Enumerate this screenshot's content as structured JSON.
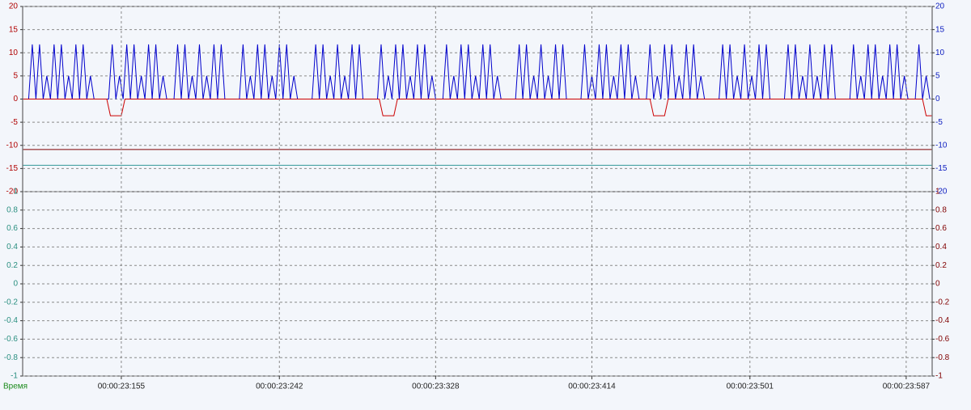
{
  "chart_data": [
    {
      "type": "line",
      "xlim": [
        23100.7,
        23601.3
      ],
      "ylim": [
        -20,
        20
      ],
      "yticks": [
        20,
        15,
        10,
        5,
        0,
        -5,
        -10,
        -15,
        -20
      ],
      "grid": true,
      "series": [
        {
          "color": "#0000cc",
          "x": [
            23101,
            23104,
            23106,
            23108,
            23110,
            23112,
            23114,
            23116,
            23118,
            23120,
            23122,
            23124,
            23126,
            23128,
            23130,
            23132,
            23134,
            23136,
            23138,
            23140,
            23148,
            23150,
            23152,
            23154,
            23156,
            23158,
            23160,
            23162,
            23164,
            23166,
            23168,
            23170,
            23172,
            23174,
            23176,
            23178,
            23180,
            23184,
            23186,
            23188,
            23190,
            23192,
            23194,
            23196,
            23198,
            23200,
            23202,
            23204,
            23206,
            23208,
            23210,
            23212,
            23220,
            23222,
            23224,
            23226,
            23228,
            23230,
            23232,
            23234,
            23236,
            23238,
            23240,
            23242,
            23244,
            23246,
            23248,
            23250,
            23252,
            23260,
            23262,
            23264,
            23266,
            23268,
            23270,
            23272,
            23274,
            23276,
            23278,
            23280,
            23282,
            23284,
            23286,
            23288,
            23296,
            23298,
            23300,
            23302,
            23304,
            23306,
            23308,
            23310,
            23312,
            23314,
            23316,
            23318,
            23320,
            23322,
            23324,
            23326,
            23328,
            23332,
            23334,
            23336,
            23338,
            23340,
            23342,
            23344,
            23346,
            23348,
            23350,
            23352,
            23354,
            23356,
            23358,
            23360,
            23362,
            23364,
            23372,
            23374,
            23376,
            23378,
            23380,
            23382,
            23384,
            23386,
            23388,
            23390,
            23392,
            23394,
            23396,
            23398,
            23400,
            23408,
            23410,
            23412,
            23414,
            23416,
            23418,
            23420,
            23422,
            23424,
            23426,
            23428,
            23430,
            23432,
            23434,
            23436,
            23438,
            23440,
            23444,
            23446,
            23448,
            23450,
            23452,
            23454,
            23456,
            23458,
            23460,
            23462,
            23464,
            23466,
            23468,
            23470,
            23472,
            23474,
            23476,
            23484,
            23486,
            23488,
            23490,
            23492,
            23494,
            23496,
            23498,
            23500,
            23502,
            23504,
            23506,
            23508,
            23510,
            23512,
            23520,
            23522,
            23524,
            23526,
            23528,
            23530,
            23532,
            23534,
            23536,
            23538,
            23540,
            23542,
            23544,
            23546,
            23548,
            23556,
            23558,
            23560,
            23562,
            23564,
            23566,
            23568,
            23570,
            23572,
            23574,
            23576,
            23578,
            23580,
            23582,
            23584,
            23586,
            23588,
            23592,
            23594,
            23596,
            23598,
            23600
          ],
          "values": [
            0,
            0,
            11.8,
            0,
            11.8,
            0,
            5,
            0,
            11.8,
            0,
            11.8,
            0,
            5,
            0,
            11.8,
            0,
            11.8,
            0,
            5,
            0,
            0,
            11.8,
            0,
            5,
            0,
            11.8,
            0,
            11.8,
            0,
            5,
            0,
            11.8,
            0,
            11.8,
            0,
            5,
            0,
            0,
            11.8,
            0,
            11.8,
            0,
            5,
            0,
            11.8,
            0,
            5,
            0,
            11.8,
            0,
            11.8,
            0,
            0,
            11.8,
            0,
            5,
            0,
            11.8,
            0,
            11.8,
            0,
            5,
            0,
            11.8,
            0,
            11.8,
            0,
            5,
            0,
            0,
            11.8,
            0,
            11.8,
            0,
            5,
            0,
            11.8,
            0,
            5,
            0,
            11.8,
            0,
            11.8,
            0,
            0,
            11.8,
            0,
            5,
            0,
            11.8,
            0,
            11.8,
            0,
            5,
            0,
            11.8,
            0,
            11.8,
            0,
            5,
            0,
            0,
            11.8,
            0,
            5,
            0,
            11.8,
            0,
            11.8,
            0,
            5,
            0,
            11.8,
            0,
            11.8,
            0,
            5,
            0,
            0,
            11.8,
            0,
            11.8,
            0,
            5,
            0,
            11.8,
            0,
            5,
            0,
            11.8,
            0,
            11.8,
            0,
            0,
            11.8,
            0,
            5,
            0,
            11.8,
            0,
            11.8,
            0,
            5,
            0,
            11.8,
            0,
            11.8,
            0,
            5,
            0,
            0,
            11.8,
            0,
            5,
            0,
            11.8,
            0,
            11.8,
            0,
            5,
            0,
            11.8,
            0,
            11.8,
            0,
            5,
            0,
            0,
            11.8,
            0,
            11.8,
            0,
            5,
            0,
            11.8,
            0,
            5,
            0,
            11.8,
            0,
            11.8,
            0,
            0,
            11.8,
            0,
            11.8,
            0,
            5,
            0,
            11.8,
            0,
            5,
            0,
            11.8,
            0,
            11.8,
            0,
            0,
            11.8,
            0,
            5,
            0,
            11.8,
            0,
            11.8,
            0,
            5,
            0,
            11.8,
            0,
            11.8,
            0,
            5,
            0,
            0,
            11.8,
            0,
            5,
            0
          ]
        },
        {
          "color": "#cc0000",
          "x": [
            23101,
            23147,
            23149,
            23155,
            23157,
            23297,
            23299,
            23305,
            23307,
            23446,
            23448,
            23454,
            23456,
            23596,
            23598,
            23601
          ],
          "values": [
            0,
            0,
            -3.6,
            -3.6,
            0,
            0,
            -3.6,
            -3.6,
            0,
            0,
            -3.6,
            -3.6,
            0,
            0,
            -3.6,
            -3.6
          ]
        },
        {
          "color": "#800000",
          "x": [
            23101,
            23601
          ],
          "values": [
            -10.9,
            -10.9
          ]
        },
        {
          "color": "#339999",
          "x": [
            23101,
            23601
          ],
          "values": [
            -14.3,
            -14.3
          ]
        }
      ]
    },
    {
      "type": "line",
      "xlim": [
        23100.7,
        23601.3
      ],
      "ylim": [
        -1,
        1
      ],
      "yticks": [
        1,
        0.8,
        0.6,
        0.4,
        0.2,
        0,
        -0.2,
        -0.4,
        -0.6,
        -0.8,
        -1
      ],
      "grid": true,
      "xlabel": "Время",
      "xticks": [
        {
          "value": 23155,
          "label": "00:00:23:155"
        },
        {
          "value": 23242,
          "label": "00:00:23:242"
        },
        {
          "value": 23328,
          "label": "00:00:23:328"
        },
        {
          "value": 23414,
          "label": "00:00:23:414"
        },
        {
          "value": 23501,
          "label": "00:00:23:501"
        },
        {
          "value": 23587,
          "label": "00:00:23:587"
        }
      ]
    }
  ]
}
